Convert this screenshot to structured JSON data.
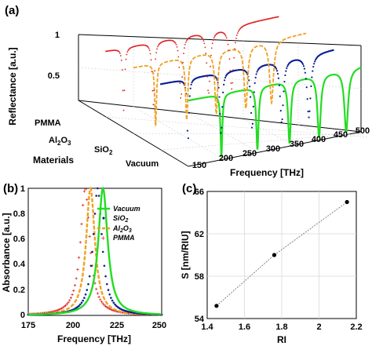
{
  "colors": {
    "vacuum": "#22dd22",
    "sio2": "#0a1f8f",
    "al2o3": "#f0a020",
    "pmma": "#e02020",
    "line_c": "#666666"
  },
  "panels": {
    "a": "(a)",
    "b": "(b)",
    "c": "(c)"
  },
  "chart_data": [
    {
      "type": "line",
      "id": "panel-a",
      "xlabel": "Frequency [THz]",
      "ylabel": "Reflectance [a.u.]",
      "zlabel": "Materials",
      "x_ticks": [
        "150",
        "200",
        "250",
        "300",
        "350",
        "400",
        "450",
        "500"
      ],
      "y_ticks": [
        "0.5",
        "1"
      ],
      "material_labels": [
        "Vacuum",
        "SiO",
        "Al",
        "O",
        "PMMA"
      ],
      "sub_2": "2",
      "sub_3": "3",
      "xlim": [
        150,
        500
      ],
      "series": [
        {
          "key": "vacuum",
          "dips": [
            217,
            290,
            355,
            415,
            470
          ]
        },
        {
          "key": "sio2",
          "dips": [
            205,
            272,
            335,
            395,
            450
          ]
        },
        {
          "key": "al2o3",
          "dips": [
            195,
            258,
            318,
            378,
            430
          ]
        },
        {
          "key": "pmma",
          "dips": [
            186,
            246,
            302,
            358,
            405
          ]
        }
      ]
    },
    {
      "type": "line",
      "id": "panel-b",
      "xlabel": "Frequency [THz]",
      "ylabel": "Absorbance [a.u.]",
      "xlim": [
        175,
        250
      ],
      "ylim": [
        0,
        1
      ],
      "x_ticks": [
        "175",
        "200",
        "225",
        "250"
      ],
      "y_ticks": [
        "0",
        "0.2",
        "0.4",
        "0.6",
        "0.8",
        "1"
      ],
      "legend": [
        "Vacuum",
        "SiO",
        "Al",
        "O",
        "PMMA"
      ],
      "series": [
        {
          "key": "vacuum",
          "peak": 217,
          "width": 3.2
        },
        {
          "key": "sio2",
          "peak": 214,
          "width": 3.0
        },
        {
          "key": "al2o3",
          "peak": 210,
          "width": 3.0
        },
        {
          "key": "pmma",
          "peak": 207,
          "width": 3.2
        }
      ]
    },
    {
      "type": "scatter",
      "id": "panel-c",
      "xlabel": "RI",
      "ylabel": "S [nm/RIU]",
      "xlim": [
        1.4,
        2.2
      ],
      "ylim": [
        54,
        66
      ],
      "x_ticks": [
        "1.4",
        "1.6",
        "1.8",
        "2",
        "2.2"
      ],
      "y_ticks": [
        "54",
        "58",
        "62",
        "66"
      ],
      "x_tick_values": [
        1.4,
        1.6,
        1.8,
        2.0,
        2.2
      ],
      "y_tick_values": [
        54,
        58,
        62,
        66
      ],
      "x": [
        1.45,
        1.76,
        2.15
      ],
      "y": [
        55.2,
        60.0,
        65.0
      ]
    }
  ]
}
